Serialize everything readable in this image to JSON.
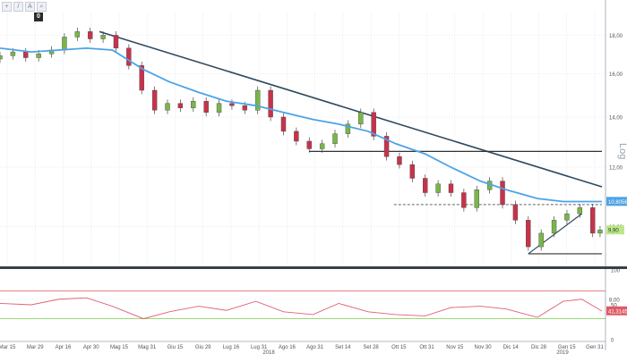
{
  "toolbar": {
    "icons": [
      "plus-icon",
      "pencil-icon",
      "text-icon",
      "magnifier-icon"
    ],
    "badge": "0"
  },
  "price_axis": {
    "scale_label": "Log",
    "ticks": [
      "18,00",
      "16,00",
      "14,00",
      "12,00",
      "10,00",
      "8,00"
    ],
    "last_price": "9,90",
    "ma_value": "10,8056",
    "last_price_color": "#b8e986",
    "ma_color": "#4da3e6"
  },
  "rsi_axis": {
    "ticks": [
      "100",
      "50",
      "0"
    ],
    "value": "41,3145"
  },
  "x_axis": {
    "labels": [
      "Mar 15",
      "Mar 29",
      "Apr 16",
      "Apr 30",
      "Mag 15",
      "Mag 31",
      "Giu 15",
      "Giu 29",
      "Lug 16",
      "Lug 31",
      "Ago 16",
      "Ago 31",
      "Set 14",
      "Set 28",
      "Ott 15",
      "Ott 31",
      "Nov 15",
      "Nov 30",
      "Dic 14",
      "Dic 28",
      "Gen 15",
      "Gen 31"
    ],
    "years": [
      "2018",
      "2019"
    ]
  },
  "chart_data": [
    {
      "type": "candlestick",
      "title": "",
      "scale": "log",
      "ylim": [
        8.9,
        19.3
      ],
      "x_range": [
        "2018-03-15",
        "2019-02-05"
      ],
      "moving_average": [
        {
          "x": "2018-03-15",
          "y": 17.3
        },
        {
          "x": "2018-04-01",
          "y": 17.1
        },
        {
          "x": "2018-04-16",
          "y": 17.2
        },
        {
          "x": "2018-05-01",
          "y": 17.3
        },
        {
          "x": "2018-05-15",
          "y": 17.2
        },
        {
          "x": "2018-06-01",
          "y": 16.2
        },
        {
          "x": "2018-06-15",
          "y": 15.6
        },
        {
          "x": "2018-07-01",
          "y": 15.1
        },
        {
          "x": "2018-07-16",
          "y": 14.7
        },
        {
          "x": "2018-08-01",
          "y": 14.5
        },
        {
          "x": "2018-08-16",
          "y": 14.2
        },
        {
          "x": "2018-09-01",
          "y": 13.9
        },
        {
          "x": "2018-09-15",
          "y": 13.7
        },
        {
          "x": "2018-10-01",
          "y": 13.4
        },
        {
          "x": "2018-10-16",
          "y": 12.9
        },
        {
          "x": "2018-11-01",
          "y": 12.5
        },
        {
          "x": "2018-11-15",
          "y": 12.0
        },
        {
          "x": "2018-12-01",
          "y": 11.5
        },
        {
          "x": "2018-12-15",
          "y": 11.2
        },
        {
          "x": "2019-01-01",
          "y": 10.9
        },
        {
          "x": "2019-01-15",
          "y": 10.8
        },
        {
          "x": "2019-02-05",
          "y": 10.8
        }
      ],
      "candles_close": [
        {
          "x": "2018-03-15",
          "y": 16.9
        },
        {
          "x": "2018-03-22",
          "y": 17.1
        },
        {
          "x": "2018-03-29",
          "y": 16.8
        },
        {
          "x": "2018-04-05",
          "y": 17.0
        },
        {
          "x": "2018-04-12",
          "y": 17.2
        },
        {
          "x": "2018-04-19",
          "y": 17.9
        },
        {
          "x": "2018-04-26",
          "y": 18.2
        },
        {
          "x": "2018-05-03",
          "y": 17.8
        },
        {
          "x": "2018-05-10",
          "y": 18.0
        },
        {
          "x": "2018-05-17",
          "y": 17.3
        },
        {
          "x": "2018-05-24",
          "y": 16.4
        },
        {
          "x": "2018-05-31",
          "y": 15.2
        },
        {
          "x": "2018-06-07",
          "y": 14.3
        },
        {
          "x": "2018-06-14",
          "y": 14.6
        },
        {
          "x": "2018-06-21",
          "y": 14.4
        },
        {
          "x": "2018-06-28",
          "y": 14.7
        },
        {
          "x": "2018-07-05",
          "y": 14.2
        },
        {
          "x": "2018-07-12",
          "y": 14.6
        },
        {
          "x": "2018-07-19",
          "y": 14.5
        },
        {
          "x": "2018-07-26",
          "y": 14.3
        },
        {
          "x": "2018-08-02",
          "y": 15.2
        },
        {
          "x": "2018-08-09",
          "y": 14.0
        },
        {
          "x": "2018-08-16",
          "y": 13.4
        },
        {
          "x": "2018-08-23",
          "y": 13.0
        },
        {
          "x": "2018-08-30",
          "y": 12.7
        },
        {
          "x": "2018-09-06",
          "y": 12.9
        },
        {
          "x": "2018-09-13",
          "y": 13.3
        },
        {
          "x": "2018-09-20",
          "y": 13.7
        },
        {
          "x": "2018-09-27",
          "y": 14.2
        },
        {
          "x": "2018-10-04",
          "y": 13.2
        },
        {
          "x": "2018-10-11",
          "y": 12.4
        },
        {
          "x": "2018-10-18",
          "y": 12.1
        },
        {
          "x": "2018-10-25",
          "y": 11.6
        },
        {
          "x": "2018-11-01",
          "y": 11.1
        },
        {
          "x": "2018-11-08",
          "y": 11.4
        },
        {
          "x": "2018-11-15",
          "y": 11.1
        },
        {
          "x": "2018-11-22",
          "y": 10.6
        },
        {
          "x": "2018-11-29",
          "y": 11.2
        },
        {
          "x": "2018-12-06",
          "y": 11.5
        },
        {
          "x": "2018-12-13",
          "y": 10.7
        },
        {
          "x": "2018-12-20",
          "y": 10.2
        },
        {
          "x": "2018-12-27",
          "y": 9.4
        },
        {
          "x": "2019-01-03",
          "y": 9.8
        },
        {
          "x": "2019-01-10",
          "y": 10.2
        },
        {
          "x": "2019-01-17",
          "y": 10.4
        },
        {
          "x": "2019-01-24",
          "y": 10.6
        },
        {
          "x": "2019-01-31",
          "y": 9.8
        },
        {
          "x": "2019-02-04",
          "y": 9.9
        }
      ]
    },
    {
      "type": "line",
      "title": "",
      "ylim": [
        0,
        100
      ],
      "overbought": 70,
      "oversold": 30,
      "series": [
        {
          "values": [
            {
              "x": "2018-03-15",
              "y": 52
            },
            {
              "x": "2018-04-01",
              "y": 50
            },
            {
              "x": "2018-04-16",
              "y": 58
            },
            {
              "x": "2018-05-01",
              "y": 60
            },
            {
              "x": "2018-05-15",
              "y": 48
            },
            {
              "x": "2018-06-01",
              "y": 30
            },
            {
              "x": "2018-06-15",
              "y": 40
            },
            {
              "x": "2018-07-01",
              "y": 48
            },
            {
              "x": "2018-07-16",
              "y": 42
            },
            {
              "x": "2018-08-01",
              "y": 55
            },
            {
              "x": "2018-08-16",
              "y": 40
            },
            {
              "x": "2018-09-01",
              "y": 36
            },
            {
              "x": "2018-09-15",
              "y": 52
            },
            {
              "x": "2018-10-01",
              "y": 40
            },
            {
              "x": "2018-10-16",
              "y": 36
            },
            {
              "x": "2018-11-01",
              "y": 34
            },
            {
              "x": "2018-11-15",
              "y": 46
            },
            {
              "x": "2018-12-01",
              "y": 48
            },
            {
              "x": "2018-12-15",
              "y": 44
            },
            {
              "x": "2019-01-01",
              "y": 32
            },
            {
              "x": "2019-01-15",
              "y": 55
            },
            {
              "x": "2019-01-25",
              "y": 58
            },
            {
              "x": "2019-02-05",
              "y": 41
            }
          ]
        }
      ]
    }
  ]
}
